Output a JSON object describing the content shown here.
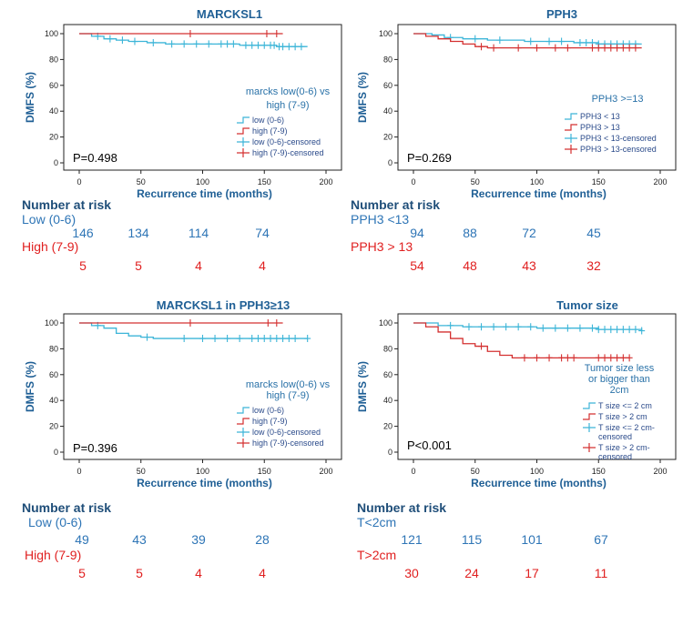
{
  "chart_data": [
    {
      "type": "line",
      "title": "MARCKSL1",
      "xlabel": "Recurrence time (months)",
      "ylabel": "DMFS (%)",
      "xlim": [
        0,
        200
      ],
      "ylim": [
        0,
        100
      ],
      "xticks": [
        "0",
        "50",
        "100",
        "150",
        "200"
      ],
      "yticks": [
        "0",
        "20",
        "40",
        "60",
        "80",
        "100"
      ],
      "p_value": "P=0.498",
      "legend_title": "marcks low(0-6) vs high (7-9)",
      "legend": [
        "low (0-6)",
        "high (7-9)",
        "low (0-6)-censored",
        "high (7-9)-censored"
      ],
      "series": [
        {
          "name": "low (0-6)",
          "color": "#3cb5d8",
          "x": [
            0,
            10,
            20,
            30,
            40,
            55,
            70,
            90,
            110,
            130,
            150,
            160,
            185
          ],
          "y": [
            100,
            98,
            96,
            95,
            94,
            93,
            92,
            92,
            92,
            91,
            91,
            90,
            90
          ],
          "censored_x": [
            15,
            25,
            35,
            45,
            60,
            75,
            85,
            95,
            105,
            115,
            120,
            125,
            135,
            140,
            145,
            150,
            155,
            158,
            162,
            165,
            170,
            175,
            180
          ]
        },
        {
          "name": "high (7-9)",
          "color": "#d43030",
          "x": [
            0,
            165
          ],
          "y": [
            100,
            100
          ],
          "censored_x": [
            90,
            152,
            160
          ]
        }
      ],
      "risk_table": {
        "header": "Number at risk",
        "groups": [
          {
            "label": "Low (0-6)",
            "counts": [
              "146",
              "134",
              "114",
              "74"
            ]
          },
          {
            "label": "High (7-9)",
            "counts": [
              "5",
              "5",
              "4",
              "4"
            ]
          }
        ]
      }
    },
    {
      "type": "line",
      "title": "PPH3",
      "xlabel": "Recurrence time (months)",
      "ylabel": "DMFS (%)",
      "xlim": [
        0,
        200
      ],
      "ylim": [
        0,
        100
      ],
      "xticks": [
        "0",
        "50",
        "100",
        "150",
        "200"
      ],
      "yticks": [
        "0",
        "20",
        "40",
        "60",
        "80",
        "100"
      ],
      "p_value": "P=0.269",
      "legend_title": "PPH3 >=13",
      "legend": [
        "PPH3 < 13",
        "PPH3 > 13",
        "PPH3 < 13-censored",
        "PPH3 > 13-censored"
      ],
      "series": [
        {
          "name": "PPH3 < 13",
          "color": "#3cb5d8",
          "x": [
            0,
            15,
            25,
            40,
            60,
            90,
            130,
            150,
            185
          ],
          "y": [
            100,
            99,
            97,
            96,
            95,
            94,
            93,
            92,
            92
          ],
          "censored_x": [
            30,
            50,
            70,
            95,
            110,
            120,
            135,
            140,
            145,
            150,
            155,
            160,
            165,
            170,
            175,
            180
          ]
        },
        {
          "name": "PPH3 > 13",
          "color": "#d43030",
          "x": [
            0,
            10,
            20,
            30,
            40,
            50,
            60,
            185
          ],
          "y": [
            100,
            98,
            96,
            94,
            92,
            90,
            89,
            89
          ],
          "censored_x": [
            55,
            65,
            85,
            100,
            115,
            125,
            145,
            150,
            155,
            160,
            165,
            170,
            175,
            180
          ]
        }
      ],
      "risk_table": {
        "header": "Number at risk",
        "groups": [
          {
            "label": "PPH3 <13",
            "counts": [
              "94",
              "88",
              "72",
              "45"
            ]
          },
          {
            "label": "PPH3 > 13",
            "counts": [
              "54",
              "48",
              "43",
              "32"
            ]
          }
        ]
      }
    },
    {
      "type": "line",
      "title": "MARCKSL1 in PPH3≥13",
      "xlabel": "Recurrence time (months)",
      "ylabel": "DMFS (%)",
      "xlim": [
        0,
        200
      ],
      "ylim": [
        0,
        100
      ],
      "xticks": [
        "0",
        "50",
        "100",
        "150",
        "200"
      ],
      "yticks": [
        "0",
        "20",
        "40",
        "60",
        "80",
        "100"
      ],
      "p_value": "P=0.396",
      "legend_title": "marcks low(0-6) vs high (7-9)",
      "legend": [
        "low (0-6)",
        "high (7-9)",
        "low (0-6)-censored",
        "high (7-9)-censored"
      ],
      "series": [
        {
          "name": "low (0-6)",
          "color": "#3cb5d8",
          "x": [
            0,
            10,
            20,
            30,
            40,
            50,
            60,
            185
          ],
          "y": [
            100,
            98,
            96,
            92,
            90,
            89,
            88,
            88
          ],
          "censored_x": [
            15,
            55,
            85,
            100,
            110,
            120,
            130,
            140,
            145,
            150,
            155,
            160,
            165,
            170,
            175,
            185
          ]
        },
        {
          "name": "high (7-9)",
          "color": "#d43030",
          "x": [
            0,
            165
          ],
          "y": [
            100,
            100
          ],
          "censored_x": [
            90,
            153,
            160
          ]
        }
      ],
      "risk_table": {
        "header": "Number at risk",
        "groups": [
          {
            "label": "Low (0-6)",
            "counts": [
              "49",
              "43",
              "39",
              "28"
            ]
          },
          {
            "label": "High (7-9)",
            "counts": [
              "5",
              "5",
              "4",
              "4"
            ]
          }
        ]
      }
    },
    {
      "type": "line",
      "title": "Tumor size",
      "xlabel": "Recurrence time (months)",
      "ylabel": "DMFS (%)",
      "xlim": [
        0,
        200
      ],
      "ylim": [
        0,
        100
      ],
      "xticks": [
        "0",
        "50",
        "100",
        "150",
        "200"
      ],
      "yticks": [
        "0",
        "20",
        "40",
        "60",
        "80",
        "100"
      ],
      "p_value": "P<0.001",
      "legend_title": "Tumor size less or bigger than 2cm",
      "legend": [
        "T size <= 2 cm",
        "T size > 2 cm",
        "T size <= 2 cm-censored",
        "T size > 2 cm-censored"
      ],
      "series": [
        {
          "name": "T size <= 2 cm",
          "color": "#3cb5d8",
          "x": [
            0,
            20,
            40,
            60,
            100,
            150,
            185
          ],
          "y": [
            100,
            98,
            97,
            97,
            96,
            95,
            94
          ],
          "censored_x": [
            30,
            45,
            55,
            65,
            75,
            85,
            95,
            105,
            115,
            125,
            135,
            145,
            150,
            155,
            160,
            165,
            170,
            175,
            180,
            185
          ]
        },
        {
          "name": "T size > 2 cm",
          "color": "#d43030",
          "x": [
            0,
            10,
            20,
            30,
            40,
            50,
            60,
            70,
            80,
            175
          ],
          "y": [
            100,
            97,
            93,
            88,
            84,
            82,
            78,
            75,
            73,
            73
          ],
          "censored_x": [
            55,
            90,
            100,
            110,
            120,
            125,
            130,
            150,
            155,
            160,
            165,
            170,
            175
          ]
        }
      ],
      "risk_table": {
        "header": "Number at risk",
        "groups": [
          {
            "label": "T<2cm",
            "counts": [
              "121",
              "115",
              "101",
              "67"
            ]
          },
          {
            "label": "T>2cm",
            "counts": [
              "30",
              "24",
              "17",
              "11"
            ]
          }
        ]
      }
    }
  ]
}
